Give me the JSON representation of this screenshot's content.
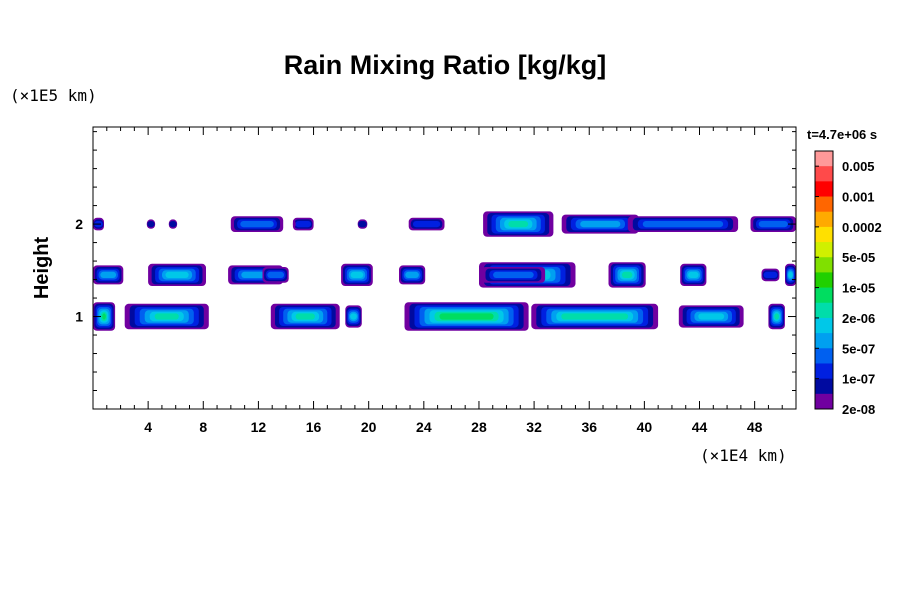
{
  "chart_data": {
    "type": "contour",
    "title": "Rain Mixing Ratio [kg/kg]",
    "ylabel": "Height",
    "y_unit": "(×1E5 km)",
    "x_unit": "(×1E4 km)",
    "time_label": "t=4.7e+06 s",
    "xlim": [
      0,
      51
    ],
    "ylim": [
      0,
      3.05
    ],
    "x_ticks": [
      4,
      8,
      12,
      16,
      20,
      24,
      28,
      32,
      36,
      40,
      44,
      48
    ],
    "y_ticks": [
      1,
      2
    ],
    "colorbar": {
      "labels": [
        "0.005",
        "0.001",
        "0.0002",
        "5e-05",
        "1e-05",
        "2e-06",
        "5e-07",
        "1e-07",
        "2e-08"
      ],
      "colors": [
        "#ff9999",
        "#ff4a4a",
        "#ff0000",
        "#ff6600",
        "#ffaa00",
        "#ffe000",
        "#d0f000",
        "#80e000",
        "#20d000",
        "#00dd60",
        "#00ddaa",
        "#00c8e8",
        "#00a0f0",
        "#0060f0",
        "#0020e0",
        "#000aa0",
        "#7000a0"
      ]
    },
    "layers": [
      {
        "y": 2.0,
        "segments": [
          {
            "x0": 0.0,
            "x1": 0.8,
            "level": 2
          },
          {
            "x0": 3.9,
            "x1": 4.5,
            "level": 1
          },
          {
            "x0": 5.5,
            "x1": 6.1,
            "level": 1
          },
          {
            "x0": 10.0,
            "x1": 13.8,
            "level": 3
          },
          {
            "x0": 14.5,
            "x1": 16.0,
            "level": 2
          },
          {
            "x0": 14.5,
            "x1": 14.7,
            "level": 0
          },
          {
            "x0": 19.2,
            "x1": 19.9,
            "level": 1
          },
          {
            "x0": 22.9,
            "x1": 25.5,
            "level": 2
          },
          {
            "x0": 28.3,
            "x1": 33.4,
            "level": 6
          },
          {
            "x0": 34.0,
            "x1": 39.6,
            "level": 4
          },
          {
            "x0": 38.8,
            "x1": 46.8,
            "level": 3
          },
          {
            "x0": 47.7,
            "x1": 51.0,
            "level": 3
          }
        ]
      },
      {
        "y": 1.45,
        "segments": [
          {
            "x0": 0.0,
            "x1": 2.2,
            "level": 4
          },
          {
            "x0": 4.0,
            "x1": 8.2,
            "level": 5
          },
          {
            "x0": 9.8,
            "x1": 13.8,
            "level": 4
          },
          {
            "x0": 12.3,
            "x1": 14.2,
            "level": 3
          },
          {
            "x0": 18.0,
            "x1": 20.3,
            "level": 5
          },
          {
            "x0": 22.2,
            "x1": 24.1,
            "level": 4
          },
          {
            "x0": 28.0,
            "x1": 35.0,
            "level": 6
          },
          {
            "x0": 28.2,
            "x1": 32.8,
            "level": 3
          },
          {
            "x0": 37.4,
            "x1": 40.1,
            "level": 6
          },
          {
            "x0": 42.6,
            "x1": 44.5,
            "level": 5
          },
          {
            "x0": 48.5,
            "x1": 49.8,
            "level": 2
          },
          {
            "x0": 50.2,
            "x1": 51.0,
            "level": 5
          }
        ]
      },
      {
        "y": 1.0,
        "segments": [
          {
            "x0": 0.0,
            "x1": 1.6,
            "level": 7
          },
          {
            "x0": 2.3,
            "x1": 8.4,
            "level": 6
          },
          {
            "x0": 12.9,
            "x1": 17.9,
            "level": 6
          },
          {
            "x0": 18.3,
            "x1": 19.5,
            "level": 5
          },
          {
            "x0": 22.6,
            "x1": 31.6,
            "level": 7
          },
          {
            "x0": 31.8,
            "x1": 41.0,
            "level": 6
          },
          {
            "x0": 42.5,
            "x1": 47.2,
            "level": 5
          },
          {
            "x0": 49.0,
            "x1": 50.2,
            "level": 6
          }
        ]
      }
    ]
  }
}
